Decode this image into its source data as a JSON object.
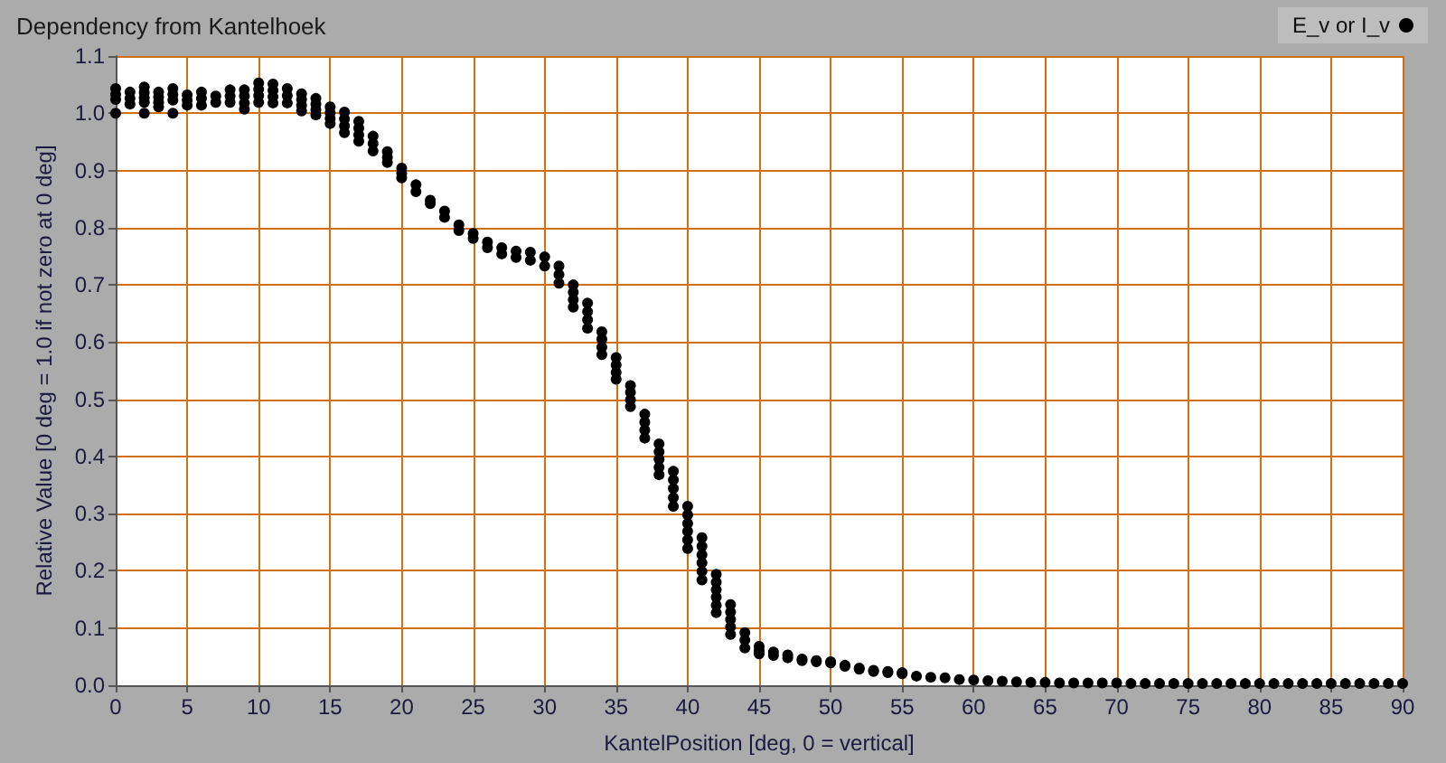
{
  "chart_data": {
    "type": "scatter",
    "title": "Dependency from Kantelhoek",
    "xlabel": "KantelPosition [deg, 0 = vertical]",
    "ylabel": "Relative Value [0 deg = 1.0 if not zero at 0 deg]",
    "xlim": [
      0,
      90
    ],
    "xticks": [
      0,
      5,
      10,
      15,
      20,
      25,
      30,
      35,
      40,
      45,
      50,
      55,
      60,
      65,
      70,
      75,
      80,
      85,
      90
    ],
    "ylim": [
      0,
      1.1
    ],
    "yticks": [
      {
        "value": 0,
        "label": "0.0"
      },
      0.1,
      0.2,
      0.3,
      0.4,
      0.5,
      0.6,
      0.7,
      0.8,
      0.9,
      {
        "value": 1,
        "label": "1.0"
      },
      1.1
    ],
    "grid": true,
    "legend": "top right",
    "marker": "circle",
    "series": [
      {
        "name": "E_v or I_v",
        "color": "#000000",
        "x": [
          0,
          0,
          0,
          0,
          1,
          1,
          1,
          2,
          2,
          2,
          2,
          2,
          3,
          3,
          3,
          3,
          4,
          4,
          4,
          4,
          5,
          5,
          5,
          6,
          6,
          6,
          7,
          7,
          8,
          8,
          8,
          9,
          9,
          9,
          9,
          10,
          10,
          10,
          10,
          11,
          11,
          11,
          11,
          12,
          12,
          12,
          13,
          13,
          13,
          13,
          14,
          14,
          14,
          14,
          15,
          15,
          15,
          15,
          16,
          16,
          16,
          16,
          17,
          17,
          17,
          17,
          18,
          18,
          18,
          19,
          19,
          19,
          20,
          20,
          20,
          21,
          21,
          22,
          22,
          23,
          23,
          24,
          24,
          25,
          25,
          26,
          26,
          27,
          27,
          28,
          28,
          29,
          29,
          30,
          30,
          31,
          31,
          31,
          32,
          32,
          32,
          32,
          33,
          33,
          33,
          33,
          34,
          34,
          34,
          34,
          35,
          35,
          35,
          35,
          36,
          36,
          36,
          36,
          37,
          37,
          37,
          37,
          38,
          38,
          38,
          38,
          38,
          39,
          39,
          39,
          39,
          39,
          40,
          40,
          40,
          40,
          40,
          40,
          41,
          41,
          41,
          41,
          41,
          41,
          42,
          42,
          42,
          42,
          42,
          42,
          43,
          43,
          43,
          43,
          43,
          44,
          44,
          44,
          45,
          45,
          45,
          46,
          46,
          47,
          47,
          48,
          48,
          49,
          49,
          50,
          50,
          51,
          51,
          52,
          52,
          53,
          53,
          54,
          54,
          55,
          55,
          56,
          57,
          58,
          59,
          60,
          61,
          62,
          63,
          64,
          65,
          66,
          67,
          68,
          69,
          70,
          71,
          72,
          73,
          74,
          75,
          76,
          77,
          78,
          79,
          80,
          81,
          82,
          83,
          84,
          85,
          86,
          87,
          88,
          89,
          90
        ],
        "values": [
          1.043,
          1.033,
          1.024,
          1.0,
          1.037,
          1.026,
          1.016,
          1.046,
          1.036,
          1.027,
          1.019,
          1.0,
          1.037,
          1.028,
          1.019,
          1.011,
          1.043,
          1.033,
          1.023,
          1.0,
          1.032,
          1.023,
          1.014,
          1.037,
          1.026,
          1.014,
          1.03,
          1.019,
          1.041,
          1.03,
          1.019,
          1.041,
          1.03,
          1.018,
          1.007,
          1.053,
          1.042,
          1.031,
          1.019,
          1.051,
          1.04,
          1.029,
          1.018,
          1.043,
          1.031,
          1.018,
          1.034,
          1.024,
          1.014,
          1.004,
          1.026,
          1.016,
          1.006,
          0.997,
          1.011,
          1.001,
          0.991,
          0.982,
          1.002,
          0.99,
          0.978,
          0.966,
          0.986,
          0.974,
          0.962,
          0.951,
          0.96,
          0.947,
          0.934,
          0.933,
          0.923,
          0.914,
          0.904,
          0.895,
          0.887,
          0.875,
          0.863,
          0.848,
          0.842,
          0.829,
          0.818,
          0.805,
          0.795,
          0.79,
          0.781,
          0.775,
          0.765,
          0.765,
          0.754,
          0.759,
          0.748,
          0.757,
          0.743,
          0.749,
          0.733,
          0.733,
          0.718,
          0.703,
          0.7,
          0.687,
          0.674,
          0.661,
          0.668,
          0.653,
          0.639,
          0.624,
          0.618,
          0.605,
          0.591,
          0.578,
          0.573,
          0.56,
          0.547,
          0.535,
          0.524,
          0.512,
          0.499,
          0.487,
          0.474,
          0.46,
          0.446,
          0.432,
          0.422,
          0.408,
          0.395,
          0.381,
          0.368,
          0.374,
          0.359,
          0.344,
          0.328,
          0.313,
          0.313,
          0.298,
          0.283,
          0.269,
          0.254,
          0.239,
          0.258,
          0.243,
          0.228,
          0.214,
          0.199,
          0.184,
          0.194,
          0.18,
          0.167,
          0.154,
          0.14,
          0.127,
          0.141,
          0.128,
          0.115,
          0.102,
          0.089,
          0.092,
          0.079,
          0.065,
          0.068,
          0.061,
          0.055,
          0.058,
          0.052,
          0.053,
          0.048,
          0.046,
          0.043,
          0.043,
          0.041,
          0.041,
          0.039,
          0.035,
          0.033,
          0.03,
          0.028,
          0.026,
          0.024,
          0.024,
          0.022,
          0.022,
          0.02,
          0.016,
          0.014,
          0.013,
          0.01,
          0.009,
          0.008,
          0.007,
          0.006,
          0.005,
          0.005,
          0.004,
          0.004,
          0.004,
          0.004,
          0.004,
          0.003,
          0.003,
          0.003,
          0.003,
          0.003,
          0.003,
          0.003,
          0.003,
          0.003,
          0.003,
          0.003,
          0.003,
          0.003,
          0.003,
          0.003,
          0.003,
          0.003,
          0.003,
          0.003,
          0.003
        ]
      }
    ]
  }
}
